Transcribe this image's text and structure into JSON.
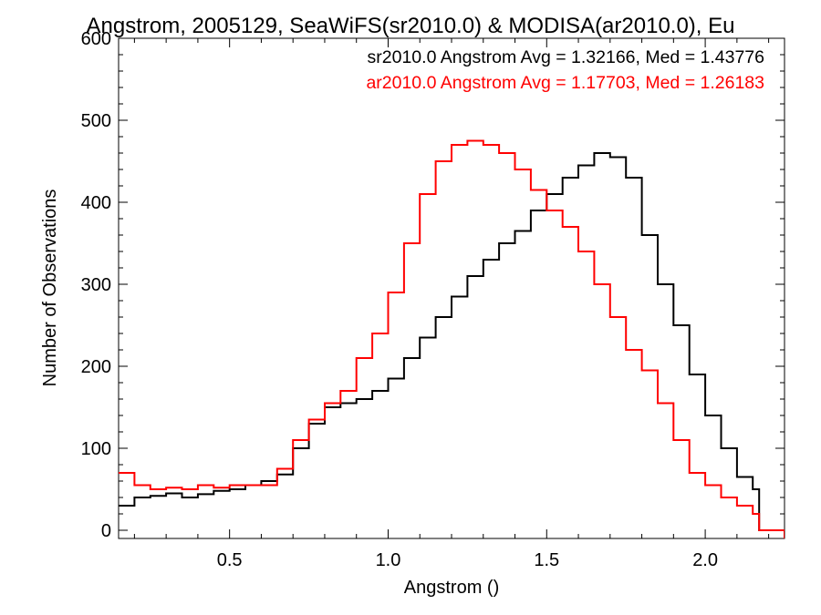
{
  "chart_data": {
    "type": "line",
    "title": "Angstrom, 2005129, SeaWiFS(sr2010.0) & MODISA(ar2010.0), Eu",
    "xlabel": "Angstrom ()",
    "ylabel": "Number of Observations",
    "xlim": [
      0.15,
      2.25
    ],
    "ylim": [
      -10,
      600
    ],
    "x_ticks": [
      0.5,
      1.0,
      1.5,
      2.0
    ],
    "x_tick_labels": [
      "0.5",
      "1.0",
      "1.5",
      "2.0"
    ],
    "y_ticks": [
      0,
      100,
      200,
      300,
      400,
      500,
      600
    ],
    "y_tick_labels": [
      "0",
      "100",
      "200",
      "300",
      "400",
      "500",
      "600"
    ],
    "grid": false,
    "legend_position": "top-right",
    "legend": [
      "sr2010.0 Angstrom Avg = 1.32166, Med = 1.43776",
      "ar2010.0 Angstrom Avg = 1.17703, Med = 1.26183"
    ],
    "series": [
      {
        "color": "#000000",
        "points": [
          [
            0.15,
            30
          ],
          [
            0.2,
            40
          ],
          [
            0.25,
            42
          ],
          [
            0.3,
            45
          ],
          [
            0.35,
            40
          ],
          [
            0.4,
            44
          ],
          [
            0.45,
            48
          ],
          [
            0.5,
            50
          ],
          [
            0.55,
            55
          ],
          [
            0.6,
            60
          ],
          [
            0.65,
            68
          ],
          [
            0.7,
            100
          ],
          [
            0.75,
            130
          ],
          [
            0.8,
            150
          ],
          [
            0.85,
            155
          ],
          [
            0.9,
            160
          ],
          [
            0.95,
            170
          ],
          [
            1.0,
            185
          ],
          [
            1.05,
            210
          ],
          [
            1.1,
            235
          ],
          [
            1.15,
            260
          ],
          [
            1.2,
            285
          ],
          [
            1.25,
            310
          ],
          [
            1.3,
            330
          ],
          [
            1.35,
            350
          ],
          [
            1.4,
            365
          ],
          [
            1.45,
            390
          ],
          [
            1.5,
            410
          ],
          [
            1.55,
            430
          ],
          [
            1.6,
            445
          ],
          [
            1.65,
            460
          ],
          [
            1.7,
            455
          ],
          [
            1.75,
            430
          ],
          [
            1.8,
            360
          ],
          [
            1.85,
            300
          ],
          [
            1.9,
            250
          ],
          [
            1.95,
            190
          ],
          [
            2.0,
            140
          ],
          [
            2.05,
            100
          ],
          [
            2.1,
            65
          ],
          [
            2.15,
            50
          ],
          [
            2.17,
            0
          ],
          [
            2.25,
            -10
          ]
        ]
      },
      {
        "color": "#ff0000",
        "points": [
          [
            0.15,
            70
          ],
          [
            0.2,
            55
          ],
          [
            0.25,
            50
          ],
          [
            0.3,
            52
          ],
          [
            0.35,
            50
          ],
          [
            0.4,
            55
          ],
          [
            0.45,
            52
          ],
          [
            0.5,
            55
          ],
          [
            0.55,
            55
          ],
          [
            0.6,
            55
          ],
          [
            0.65,
            75
          ],
          [
            0.7,
            110
          ],
          [
            0.75,
            135
          ],
          [
            0.8,
            155
          ],
          [
            0.85,
            170
          ],
          [
            0.9,
            210
          ],
          [
            0.95,
            240
          ],
          [
            1.0,
            290
          ],
          [
            1.05,
            350
          ],
          [
            1.1,
            410
          ],
          [
            1.15,
            450
          ],
          [
            1.2,
            470
          ],
          [
            1.25,
            475
          ],
          [
            1.3,
            470
          ],
          [
            1.35,
            460
          ],
          [
            1.4,
            440
          ],
          [
            1.45,
            415
          ],
          [
            1.5,
            390
          ],
          [
            1.55,
            370
          ],
          [
            1.6,
            340
          ],
          [
            1.65,
            300
          ],
          [
            1.7,
            260
          ],
          [
            1.75,
            220
          ],
          [
            1.8,
            195
          ],
          [
            1.85,
            155
          ],
          [
            1.9,
            110
          ],
          [
            1.95,
            70
          ],
          [
            2.0,
            55
          ],
          [
            2.05,
            40
          ],
          [
            2.1,
            30
          ],
          [
            2.15,
            20
          ],
          [
            2.17,
            0
          ],
          [
            2.25,
            -10
          ]
        ]
      }
    ]
  }
}
